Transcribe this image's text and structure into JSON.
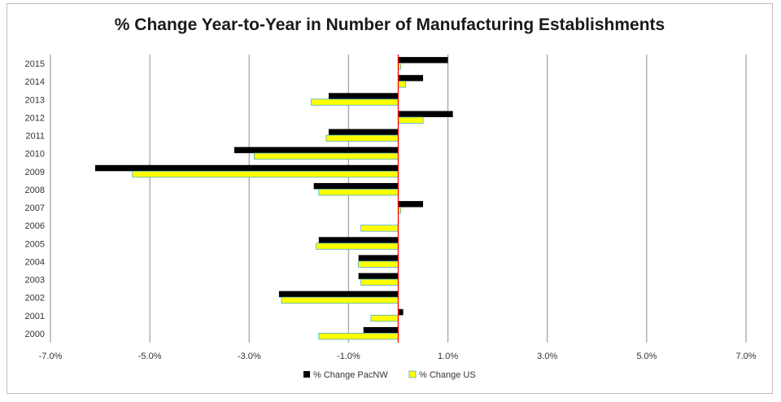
{
  "chart_data": {
    "type": "bar",
    "orientation": "horizontal",
    "title": "% Change Year-to-Year in Number of Manufacturing Establishments",
    "categories": [
      "2015",
      "2014",
      "2013",
      "2012",
      "2011",
      "2010",
      "2009",
      "2008",
      "2007",
      "2006",
      "2005",
      "2004",
      "2003",
      "2002",
      "2001",
      "2000"
    ],
    "series": [
      {
        "name": "% Change PacNW",
        "color": "#000000",
        "values": [
          1.0,
          0.5,
          -1.4,
          1.1,
          -1.4,
          -3.3,
          -6.1,
          -1.7,
          0.5,
          0.0,
          -1.6,
          -0.8,
          -0.8,
          -2.4,
          0.1,
          -0.7
        ]
      },
      {
        "name": "% Change US",
        "color": "#ffff00",
        "values": [
          0.05,
          0.15,
          -1.75,
          0.5,
          -1.45,
          -2.9,
          -5.35,
          -1.6,
          0.05,
          -0.75,
          -1.65,
          -0.8,
          -0.75,
          -2.35,
          -0.55,
          -1.6
        ]
      }
    ],
    "xlim": [
      -7.0,
      7.0
    ],
    "xticks": [
      "-7.0%",
      "-5.0%",
      "-3.0%",
      "-1.0%",
      "1.0%",
      "3.0%",
      "5.0%",
      "7.0%"
    ],
    "xtick_values": [
      -7,
      -5,
      -3,
      -1,
      1,
      3,
      5,
      7
    ],
    "zero_line_color": "#ff0000",
    "grid": "vertical",
    "legend_position": "bottom"
  }
}
